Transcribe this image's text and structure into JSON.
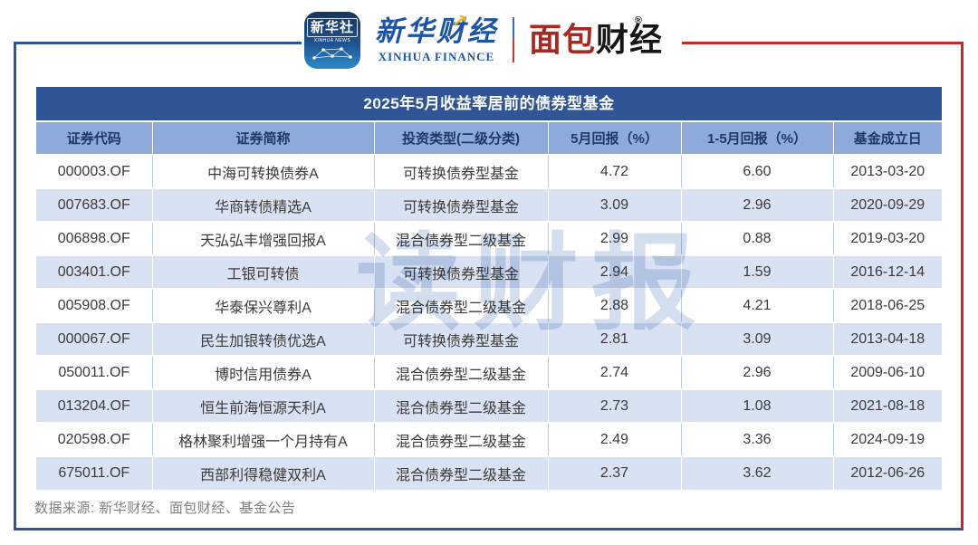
{
  "header": {
    "xinhua_icon": {
      "cn": "新华社",
      "en": "XINHUA NEWS"
    },
    "xinhua_finance": {
      "cn": "新华财经",
      "en": "XINHUA FINANCE"
    },
    "mianbao_finance": {
      "cn_red": "面包",
      "cn_black": "财经",
      "reg_mark": "®"
    }
  },
  "chart_data": {
    "type": "table",
    "title": "2025年5月收益率居前的债券型基金",
    "columns": [
      "证券代码",
      "证券简称",
      "投资类型(二级分类)",
      "5月回报（%）",
      "1-5月回报（%）",
      "基金成立日"
    ],
    "rows": [
      [
        "000003.OF",
        "中海可转换债券A",
        "可转换债券型基金",
        "4.72",
        "6.60",
        "2013-03-20"
      ],
      [
        "007683.OF",
        "华商转债精选A",
        "可转换债券型基金",
        "3.09",
        "2.96",
        "2020-09-29"
      ],
      [
        "006898.OF",
        "天弘弘丰增强回报A",
        "混合债券型二级基金",
        "2.99",
        "0.88",
        "2019-03-20"
      ],
      [
        "003401.OF",
        "工银可转债",
        "可转换债券型基金",
        "2.94",
        "1.59",
        "2016-12-14"
      ],
      [
        "005908.OF",
        "华泰保兴尊利A",
        "混合债券型二级基金",
        "2.88",
        "4.21",
        "2018-06-25"
      ],
      [
        "000067.OF",
        "民生加银转债优选A",
        "可转换债券型基金",
        "2.81",
        "3.09",
        "2013-04-18"
      ],
      [
        "050011.OF",
        "博时信用债券A",
        "混合债券型二级基金",
        "2.74",
        "2.96",
        "2009-06-10"
      ],
      [
        "013204.OF",
        "恒生前海恒源天利A",
        "混合债券型二级基金",
        "2.73",
        "1.08",
        "2021-08-18"
      ],
      [
        "020598.OF",
        "格林聚利增强一个月持有A",
        "混合债券型二级基金",
        "2.49",
        "3.36",
        "2024-09-19"
      ],
      [
        "675011.OF",
        "西部利得稳健双利A",
        "混合债券型二级基金",
        "2.37",
        "3.62",
        "2012-06-26"
      ]
    ]
  },
  "watermark": "读财报",
  "footer": {
    "source": "数据来源: 新华财经、面包财经、基金公告"
  },
  "colors": {
    "title_bar": "#2F5597",
    "header_row_bg": "#8EAADB",
    "header_text": "#1F3864",
    "row_alt_bg": "#D9E2F3",
    "frame_blue": "#2E5596",
    "frame_red": "#C02A2A",
    "mianbao_red": "#A62A22",
    "xinhua_blue": "#1C55A5"
  }
}
